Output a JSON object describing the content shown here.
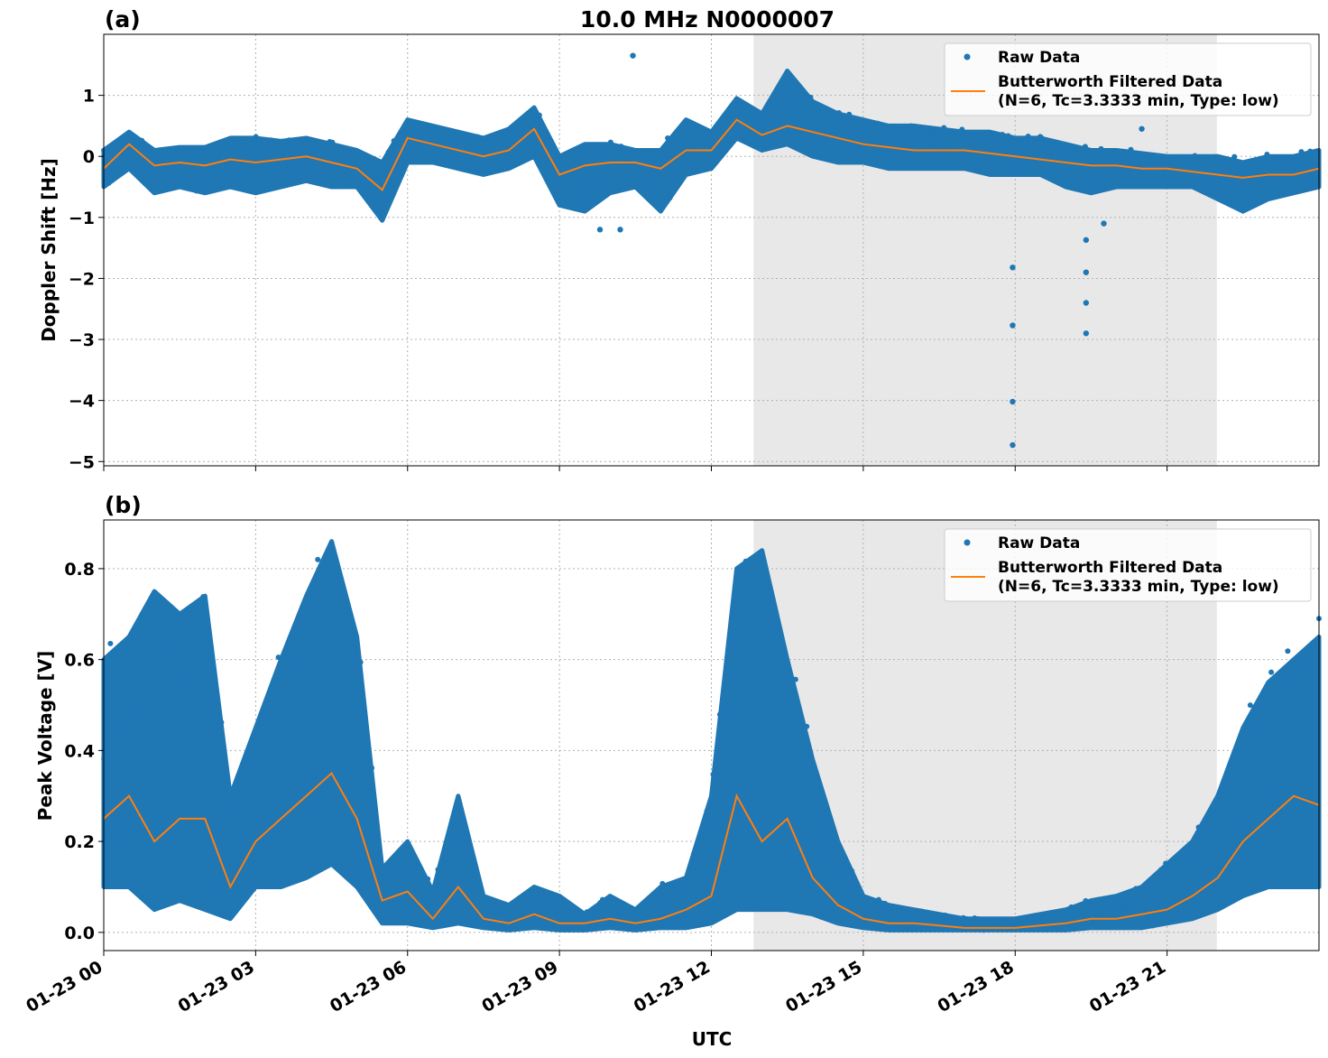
{
  "chart_data": [
    {
      "type": "scatter",
      "panel_label": "(a)",
      "title": "10.0 MHz N0000007",
      "xlabel": "",
      "ylabel": "Doppler Shift [Hz]",
      "xlim": [
        "01-23 00:00",
        "01-24 00:00"
      ],
      "ylim": [
        -5.07,
        2.0
      ],
      "yticks": [
        1,
        0,
        -1,
        -2,
        -3,
        -4,
        -5
      ],
      "ytick_labels": [
        "1",
        "0",
        "−1",
        "−2",
        "−3",
        "−4",
        "−5"
      ],
      "grid": true,
      "legend": [
        "Raw Data",
        "Butterworth Filtered Data",
        "(N=6, Tc=3.3333 min, Type: low)"
      ],
      "legend_placement": "upper-right",
      "shaded_span": [
        "01-23 12:50",
        "01-23 21:59"
      ],
      "colors": {
        "raw": "#1f77b4",
        "filtered": "#ff7f0e",
        "shade": "#e8e8e8"
      },
      "x": [
        "01-23 00:00",
        "01-23 00:30",
        "01-23 01:00",
        "01-23 01:30",
        "01-23 02:00",
        "01-23 02:30",
        "01-23 03:00",
        "01-23 03:30",
        "01-23 04:00",
        "01-23 04:30",
        "01-23 05:00",
        "01-23 05:30",
        "01-23 06:00",
        "01-23 06:30",
        "01-23 07:00",
        "01-23 07:30",
        "01-23 08:00",
        "01-23 08:30",
        "01-23 09:00",
        "01-23 09:30",
        "01-23 10:00",
        "01-23 10:30",
        "01-23 11:00",
        "01-23 11:30",
        "01-23 12:00",
        "01-23 12:30",
        "01-23 13:00",
        "01-23 13:30",
        "01-23 14:00",
        "01-23 14:30",
        "01-23 15:00",
        "01-23 15:30",
        "01-23 16:00",
        "01-23 16:30",
        "01-23 17:00",
        "01-23 17:30",
        "01-23 18:00",
        "01-23 18:30",
        "01-23 19:00",
        "01-23 19:30",
        "01-23 20:00",
        "01-23 20:30",
        "01-23 21:00",
        "01-23 21:30",
        "01-23 22:00",
        "01-23 22:30",
        "01-23 23:00",
        "01-23 23:30",
        "01-24 00:00"
      ],
      "filtered": [
        -0.2,
        0.2,
        -0.15,
        -0.1,
        -0.15,
        -0.05,
        -0.1,
        -0.05,
        0.0,
        -0.1,
        -0.2,
        -0.55,
        0.3,
        0.2,
        0.1,
        0.0,
        0.1,
        0.45,
        -0.3,
        -0.15,
        -0.1,
        -0.1,
        -0.2,
        0.1,
        0.1,
        0.6,
        0.35,
        0.5,
        0.4,
        0.3,
        0.2,
        0.15,
        0.1,
        0.1,
        0.1,
        0.05,
        0.0,
        -0.05,
        -0.1,
        -0.15,
        -0.15,
        -0.2,
        -0.2,
        -0.25,
        -0.3,
        -0.35,
        -0.3,
        -0.3,
        -0.2
      ],
      "raw_low": [
        -0.5,
        -0.2,
        -0.6,
        -0.5,
        -0.6,
        -0.5,
        -0.6,
        -0.5,
        -0.4,
        -0.5,
        -0.5,
        -1.05,
        -0.1,
        -0.1,
        -0.2,
        -0.3,
        -0.2,
        0.0,
        -0.8,
        -0.9,
        -0.6,
        -0.5,
        -0.9,
        -0.3,
        -0.2,
        0.3,
        0.1,
        0.2,
        0.0,
        -0.1,
        -0.1,
        -0.2,
        -0.2,
        -0.2,
        -0.2,
        -0.3,
        -0.3,
        -0.3,
        -0.5,
        -0.6,
        -0.5,
        -0.5,
        -0.5,
        -0.5,
        -0.7,
        -0.9,
        -0.7,
        -0.6,
        -0.5
      ],
      "raw_high": [
        0.1,
        0.4,
        0.1,
        0.15,
        0.15,
        0.3,
        0.3,
        0.25,
        0.3,
        0.2,
        0.1,
        -0.1,
        0.6,
        0.5,
        0.4,
        0.3,
        0.45,
        0.8,
        0.0,
        0.2,
        0.2,
        0.1,
        0.1,
        0.6,
        0.4,
        0.95,
        0.7,
        1.4,
        0.9,
        0.7,
        0.6,
        0.5,
        0.5,
        0.45,
        0.4,
        0.4,
        0.3,
        0.3,
        0.2,
        0.1,
        0.1,
        0.05,
        0.0,
        0.0,
        0.0,
        -0.1,
        0.0,
        0.0,
        0.1
      ],
      "raw_outliers": [
        [
          "01-23 10:27",
          1.65
        ],
        [
          "01-23 09:48",
          -1.2
        ],
        [
          "01-23 10:12",
          -1.2
        ],
        [
          "01-23 17:57",
          -1.82
        ],
        [
          "01-23 17:57",
          -2.77
        ],
        [
          "01-23 17:57",
          -4.02
        ],
        [
          "01-23 17:57",
          -4.73
        ],
        [
          "01-23 19:24",
          -1.37
        ],
        [
          "01-23 19:24",
          -1.9
        ],
        [
          "01-23 19:24",
          -2.4
        ],
        [
          "01-23 19:24",
          -2.9
        ],
        [
          "01-23 19:45",
          -1.1
        ],
        [
          "01-23 20:30",
          0.45
        ]
      ]
    },
    {
      "type": "scatter",
      "panel_label": "(b)",
      "title": "",
      "xlabel": "UTC",
      "ylabel": "Peak Voltage [V]",
      "xlim": [
        "01-23 00:00",
        "01-24 00:00"
      ],
      "ylim": [
        -0.04,
        0.907
      ],
      "yticks": [
        0.0,
        0.2,
        0.4,
        0.6,
        0.8
      ],
      "ytick_labels": [
        "0.0",
        "0.2",
        "0.4",
        "0.6",
        "0.8"
      ],
      "xtick_labels": [
        "01-23 00",
        "01-23 03",
        "01-23 06",
        "01-23 09",
        "01-23 12",
        "01-23 15",
        "01-23 18",
        "01-23 21"
      ],
      "grid": true,
      "legend": [
        "Raw Data",
        "Butterworth Filtered Data",
        "(N=6, Tc=3.3333 min, Type: low)"
      ],
      "legend_placement": "upper-right",
      "shaded_span": [
        "01-23 12:50",
        "01-23 21:59"
      ],
      "colors": {
        "raw": "#1f77b4",
        "filtered": "#ff7f0e",
        "shade": "#e8e8e8"
      },
      "x": [
        "01-23 00:00",
        "01-23 00:30",
        "01-23 01:00",
        "01-23 01:30",
        "01-23 02:00",
        "01-23 02:30",
        "01-23 03:00",
        "01-23 03:30",
        "01-23 04:00",
        "01-23 04:30",
        "01-23 05:00",
        "01-23 05:30",
        "01-23 06:00",
        "01-23 06:30",
        "01-23 07:00",
        "01-23 07:30",
        "01-23 08:00",
        "01-23 08:30",
        "01-23 09:00",
        "01-23 09:30",
        "01-23 10:00",
        "01-23 10:30",
        "01-23 11:00",
        "01-23 11:30",
        "01-23 12:00",
        "01-23 12:30",
        "01-23 13:00",
        "01-23 13:30",
        "01-23 14:00",
        "01-23 14:30",
        "01-23 15:00",
        "01-23 15:30",
        "01-23 16:00",
        "01-23 16:30",
        "01-23 17:00",
        "01-23 17:30",
        "01-23 18:00",
        "01-23 18:30",
        "01-23 19:00",
        "01-23 19:30",
        "01-23 20:00",
        "01-23 20:30",
        "01-23 21:00",
        "01-23 21:30",
        "01-23 22:00",
        "01-23 22:30",
        "01-23 23:00",
        "01-23 23:30",
        "01-24 00:00"
      ],
      "filtered": [
        0.25,
        0.3,
        0.2,
        0.25,
        0.25,
        0.1,
        0.2,
        0.25,
        0.3,
        0.35,
        0.25,
        0.07,
        0.09,
        0.03,
        0.1,
        0.03,
        0.02,
        0.04,
        0.02,
        0.02,
        0.03,
        0.02,
        0.03,
        0.05,
        0.08,
        0.3,
        0.2,
        0.25,
        0.12,
        0.06,
        0.03,
        0.02,
        0.02,
        0.015,
        0.01,
        0.01,
        0.01,
        0.015,
        0.02,
        0.03,
        0.03,
        0.04,
        0.05,
        0.08,
        0.12,
        0.2,
        0.25,
        0.3,
        0.28
      ],
      "raw_low": [
        0.1,
        0.1,
        0.05,
        0.07,
        0.05,
        0.03,
        0.1,
        0.1,
        0.12,
        0.15,
        0.1,
        0.02,
        0.02,
        0.01,
        0.02,
        0.01,
        0.005,
        0.01,
        0.005,
        0.005,
        0.01,
        0.005,
        0.01,
        0.01,
        0.02,
        0.05,
        0.05,
        0.05,
        0.04,
        0.02,
        0.01,
        0.005,
        0.005,
        0.005,
        0.005,
        0.005,
        0.005,
        0.005,
        0.005,
        0.01,
        0.01,
        0.01,
        0.02,
        0.03,
        0.05,
        0.08,
        0.1,
        0.1,
        0.1
      ],
      "raw_high": [
        0.6,
        0.65,
        0.75,
        0.7,
        0.74,
        0.3,
        0.45,
        0.6,
        0.74,
        0.86,
        0.65,
        0.14,
        0.2,
        0.09,
        0.3,
        0.08,
        0.06,
        0.1,
        0.08,
        0.04,
        0.08,
        0.05,
        0.1,
        0.12,
        0.3,
        0.8,
        0.84,
        0.6,
        0.38,
        0.2,
        0.08,
        0.06,
        0.05,
        0.04,
        0.03,
        0.03,
        0.03,
        0.04,
        0.05,
        0.07,
        0.08,
        0.1,
        0.15,
        0.2,
        0.3,
        0.45,
        0.55,
        0.6,
        0.65
      ],
      "raw_outliers": []
    }
  ]
}
